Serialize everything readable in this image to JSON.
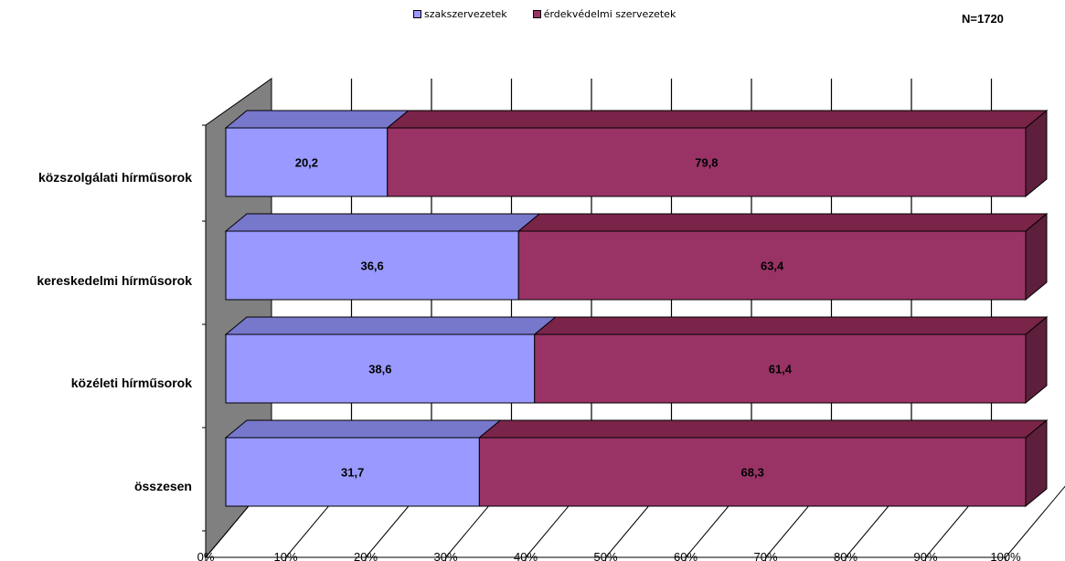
{
  "chart_data": {
    "type": "bar",
    "stacked": true,
    "orientation": "horizontal",
    "categories": [
      "közszolgálati hírműsorok",
      "kereskedelmi hírműsorok",
      "közéleti hírműsorok",
      "összesen"
    ],
    "series": [
      {
        "name": "szakszervezetek",
        "values": [
          20.2,
          36.6,
          38.6,
          31.7
        ],
        "color": "#9999ff"
      },
      {
        "name": "érdekvédelmi szervezetek",
        "values": [
          79.8,
          63.4,
          61.4,
          68.3
        ],
        "color": "#993366"
      }
    ],
    "x_ticks": [
      "0%",
      "10%",
      "20%",
      "30%",
      "40%",
      "50%",
      "60%",
      "70%",
      "80%",
      "90%",
      "100%"
    ],
    "xlim": [
      0,
      100
    ],
    "legend_position": "top",
    "grid": true,
    "note": "N=1720"
  }
}
